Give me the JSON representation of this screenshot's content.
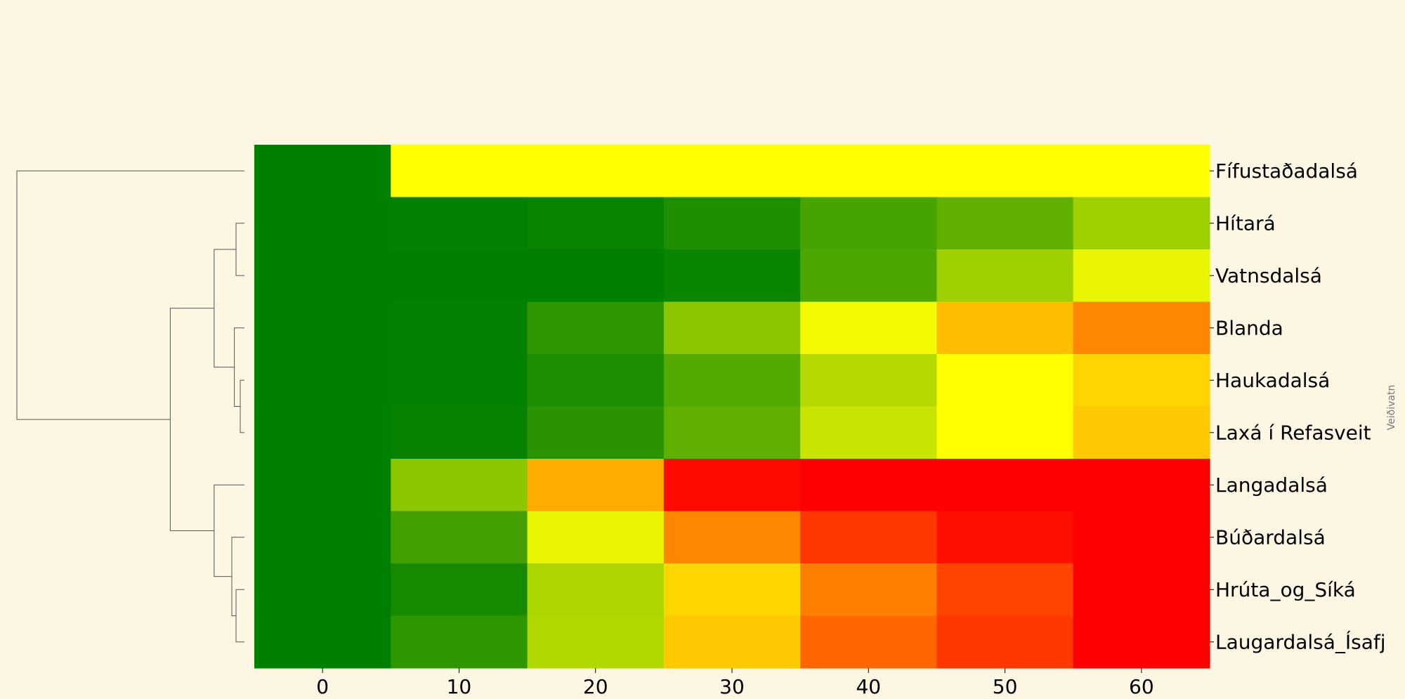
{
  "chart_data": {
    "type": "heatmap",
    "title": "",
    "xlabel": "",
    "ylabel": "",
    "side_label": "Veiðivatn",
    "x": [
      0,
      10,
      20,
      30,
      40,
      50,
      60
    ],
    "rows": [
      "Fífustaðadalsá",
      "Hítará",
      "Vatnsdalsá",
      "Blanda",
      "Haukadalsá",
      "Laxá í Refasveit",
      "Langadalsá",
      "Búðardalsá",
      "Hrúta_og_Síká",
      "Laugardalsá_Ísafj"
    ],
    "colormap": [
      "#008000",
      "#ffff00",
      "#ff0000"
    ],
    "values": [
      [
        0.0,
        1.0,
        1.0,
        1.0,
        1.0,
        1.0,
        1.0
      ],
      [
        0.0,
        0.01,
        0.03,
        0.12,
        0.28,
        0.38,
        0.62
      ],
      [
        0.0,
        0.0,
        0.0,
        0.04,
        0.3,
        0.62,
        0.91
      ],
      [
        0.0,
        0.01,
        0.18,
        0.55,
        0.95,
        1.25,
        1.47
      ],
      [
        0.0,
        0.01,
        0.11,
        0.33,
        0.71,
        1.0,
        1.17
      ],
      [
        0.0,
        0.02,
        0.16,
        0.38,
        0.79,
        1.0,
        1.21
      ],
      [
        0.0,
        0.55,
        1.33,
        1.96,
        2.0,
        2.0,
        2.0
      ],
      [
        0.0,
        0.26,
        0.91,
        1.47,
        1.79,
        1.94,
        2.0
      ],
      [
        0.0,
        0.09,
        0.68,
        1.16,
        1.5,
        1.73,
        2.0
      ],
      [
        0.0,
        0.18,
        0.69,
        1.21,
        1.6,
        1.78,
        2.0
      ]
    ],
    "dendrogram": {
      "linkage": [
        [
          1,
          2,
          0.1
        ],
        [
          4,
          5,
          0.05
        ],
        [
          3,
          11,
          0.12
        ],
        [
          10,
          12,
          0.36
        ],
        [
          8,
          9,
          0.1
        ],
        [
          7,
          14,
          0.15
        ],
        [
          6,
          15,
          0.36
        ],
        [
          13,
          16,
          0.88
        ],
        [
          0,
          17,
          2.7
        ]
      ]
    }
  }
}
